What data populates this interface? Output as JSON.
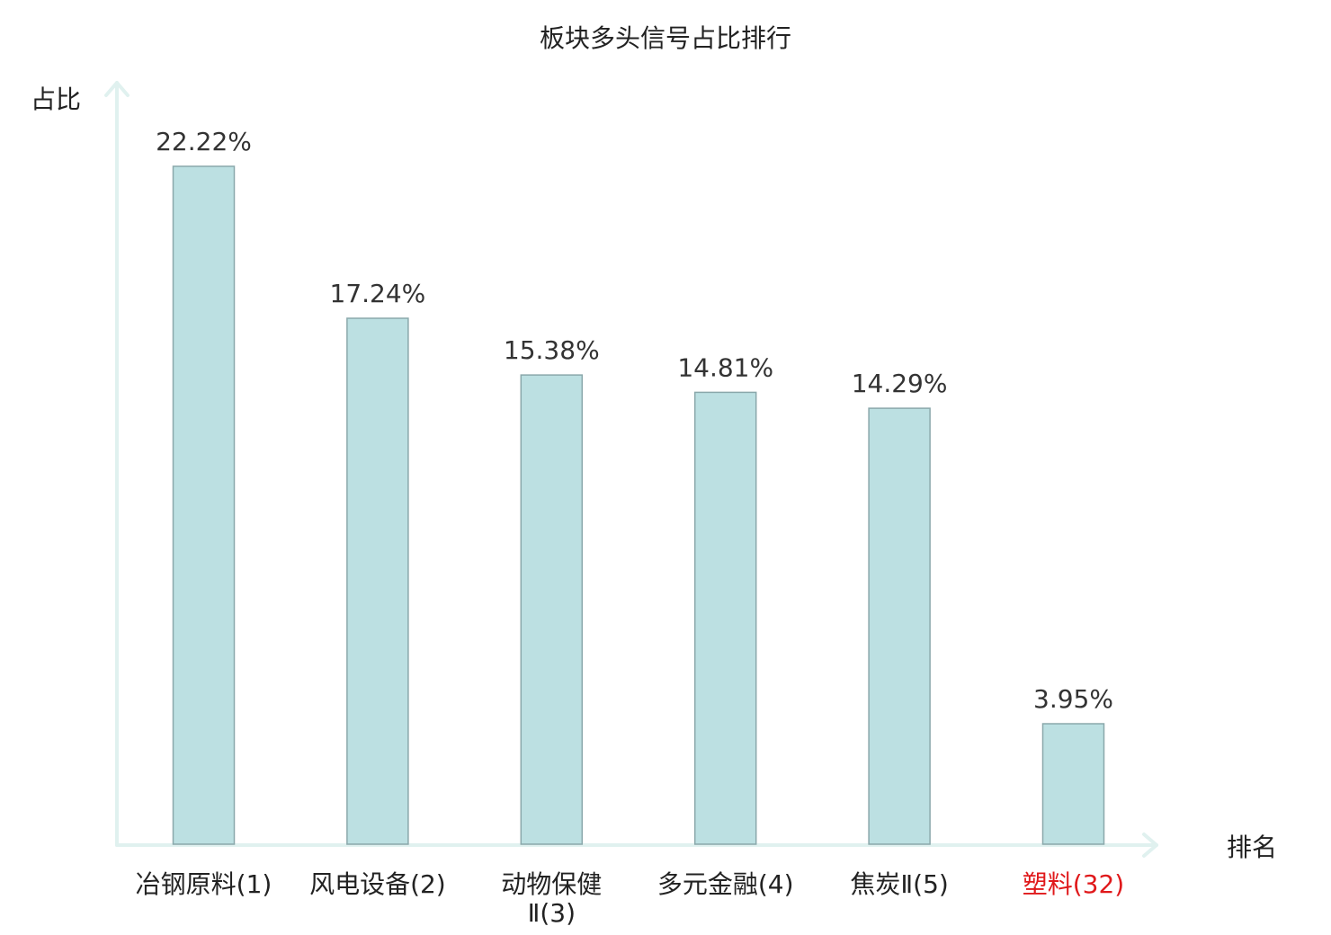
{
  "chart_data": {
    "type": "bar",
    "title": "板块多头信号占比排行",
    "xlabel": "排名",
    "ylabel": "占比",
    "categories": [
      [
        "冶钢原料(1)"
      ],
      [
        "风电设备(2)"
      ],
      [
        "动物保健",
        "Ⅱ(3)"
      ],
      [
        "多元金融(4)"
      ],
      [
        "焦炭Ⅱ(5)"
      ],
      [
        "塑料(32)"
      ]
    ],
    "values": [
      22.22,
      17.24,
      15.38,
      14.81,
      14.29,
      3.95
    ],
    "value_labels": [
      "22.22%",
      "17.24%",
      "15.38%",
      "14.81%",
      "14.29%",
      "3.95%"
    ],
    "highlight_index": 5,
    "ylim": [
      0,
      25
    ],
    "grid": false,
    "colors": {
      "bar_fill": "#bce0e2",
      "bar_stroke": "#8aa8ab",
      "axis": "#e0f1ef",
      "text": "#222222",
      "highlight": "#e0191b"
    }
  }
}
